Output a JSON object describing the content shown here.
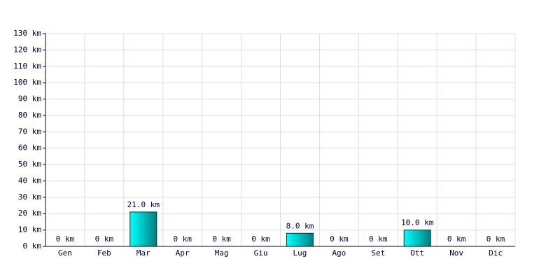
{
  "chart_data": {
    "type": "bar",
    "categories": [
      "Gen",
      "Feb",
      "Mar",
      "Apr",
      "Mag",
      "Giu",
      "Lug",
      "Ago",
      "Set",
      "Ott",
      "Nov",
      "Dic"
    ],
    "values": [
      0,
      0,
      21,
      0,
      0,
      0,
      8,
      0,
      0,
      10,
      0,
      0
    ],
    "value_labels": [
      "0 km",
      "0 km",
      "21.0 km",
      "0 km",
      "0 km",
      "0 km",
      "8.0 km",
      "0 km",
      "0 km",
      "10.0 km",
      "0 km",
      "0 km"
    ],
    "color": "#00cccc",
    "ylim": [
      0,
      130
    ],
    "yticks": [
      {
        "value": 0,
        "label": "0 km"
      },
      {
        "value": 10,
        "label": "10 km"
      },
      {
        "value": 20,
        "label": "20 km"
      },
      {
        "value": 30,
        "label": "30 km"
      },
      {
        "value": 40,
        "label": "40 km"
      },
      {
        "value": 50,
        "label": "50 km"
      },
      {
        "value": 60,
        "label": "60 km"
      },
      {
        "value": 70,
        "label": "70 km"
      },
      {
        "value": 80,
        "label": "80 km"
      },
      {
        "value": 90,
        "label": "90 km"
      },
      {
        "value": 100,
        "label": "100 km"
      },
      {
        "value": 110,
        "label": "110 km"
      },
      {
        "value": 120,
        "label": "120 km"
      },
      {
        "value": 130,
        "label": "130 km"
      }
    ],
    "grid": true
  }
}
